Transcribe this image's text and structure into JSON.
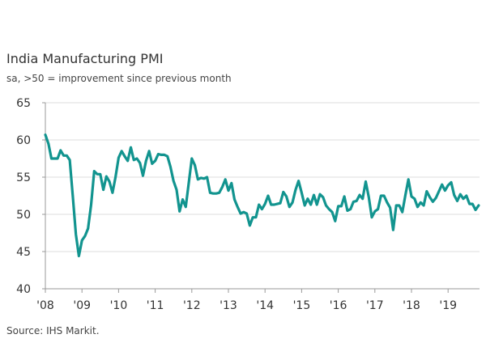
{
  "chart_data": {
    "type": "line",
    "title": "India Manufacturing PMI",
    "subtitle": "sa, >50 = improvement since previous month",
    "source": "Source: IHS Markit.",
    "x_start": "2008-01",
    "x_frequency": "monthly",
    "x_tick_labels": [
      "'08",
      "'09",
      "'10",
      "'11",
      "'12",
      "'13",
      "'14",
      "'15",
      "'16",
      "'17",
      "'18",
      "'19"
    ],
    "y_tick_labels": [
      "40",
      "45",
      "50",
      "55",
      "60",
      "65"
    ],
    "ylim": [
      40,
      65
    ],
    "grid": true,
    "line_color": "#12948f",
    "series": [
      {
        "values": [
          60.7,
          59.5,
          57.5,
          57.5,
          57.5,
          58.6,
          57.9,
          57.9,
          57.3,
          52.4,
          47.3,
          44.4,
          46.5,
          47.1,
          48.1,
          51.3,
          55.8,
          55.4,
          55.4,
          53.3,
          55.1,
          54.4,
          52.9,
          55.0,
          57.6,
          58.5,
          57.8,
          57.2,
          59.0,
          57.3,
          57.5,
          56.9,
          55.2,
          57.2,
          58.5,
          56.8,
          57.2,
          58.1,
          58.0,
          58.0,
          57.8,
          56.4,
          54.5,
          53.3,
          50.4,
          52.0,
          51.0,
          54.2,
          57.5,
          56.6,
          54.7,
          54.9,
          54.8,
          55.0,
          52.9,
          52.8,
          52.8,
          52.9,
          53.7,
          54.7,
          53.2,
          54.2,
          52.0,
          51.0,
          50.1,
          50.3,
          50.1,
          48.5,
          49.6,
          49.6,
          51.3,
          50.7,
          51.4,
          52.5,
          51.3,
          51.3,
          51.4,
          51.5,
          53.0,
          52.4,
          51.0,
          51.6,
          53.3,
          54.5,
          52.9,
          51.2,
          52.1,
          51.3,
          52.6,
          51.3,
          52.7,
          52.3,
          51.2,
          50.7,
          50.3,
          49.1,
          51.1,
          51.1,
          52.4,
          50.5,
          50.7,
          51.7,
          51.8,
          52.6,
          52.1,
          54.4,
          52.3,
          49.6,
          50.4,
          50.7,
          52.5,
          52.5,
          51.6,
          50.9,
          47.9,
          51.2,
          51.2,
          50.3,
          52.6,
          54.7,
          52.4,
          52.1,
          51.0,
          51.6,
          51.2,
          53.1,
          52.3,
          51.7,
          52.2,
          53.1,
          54.0,
          53.2,
          53.9,
          54.3,
          52.6,
          51.8,
          52.7,
          52.1,
          52.5,
          51.4,
          51.4,
          50.6,
          51.2
        ]
      }
    ]
  }
}
